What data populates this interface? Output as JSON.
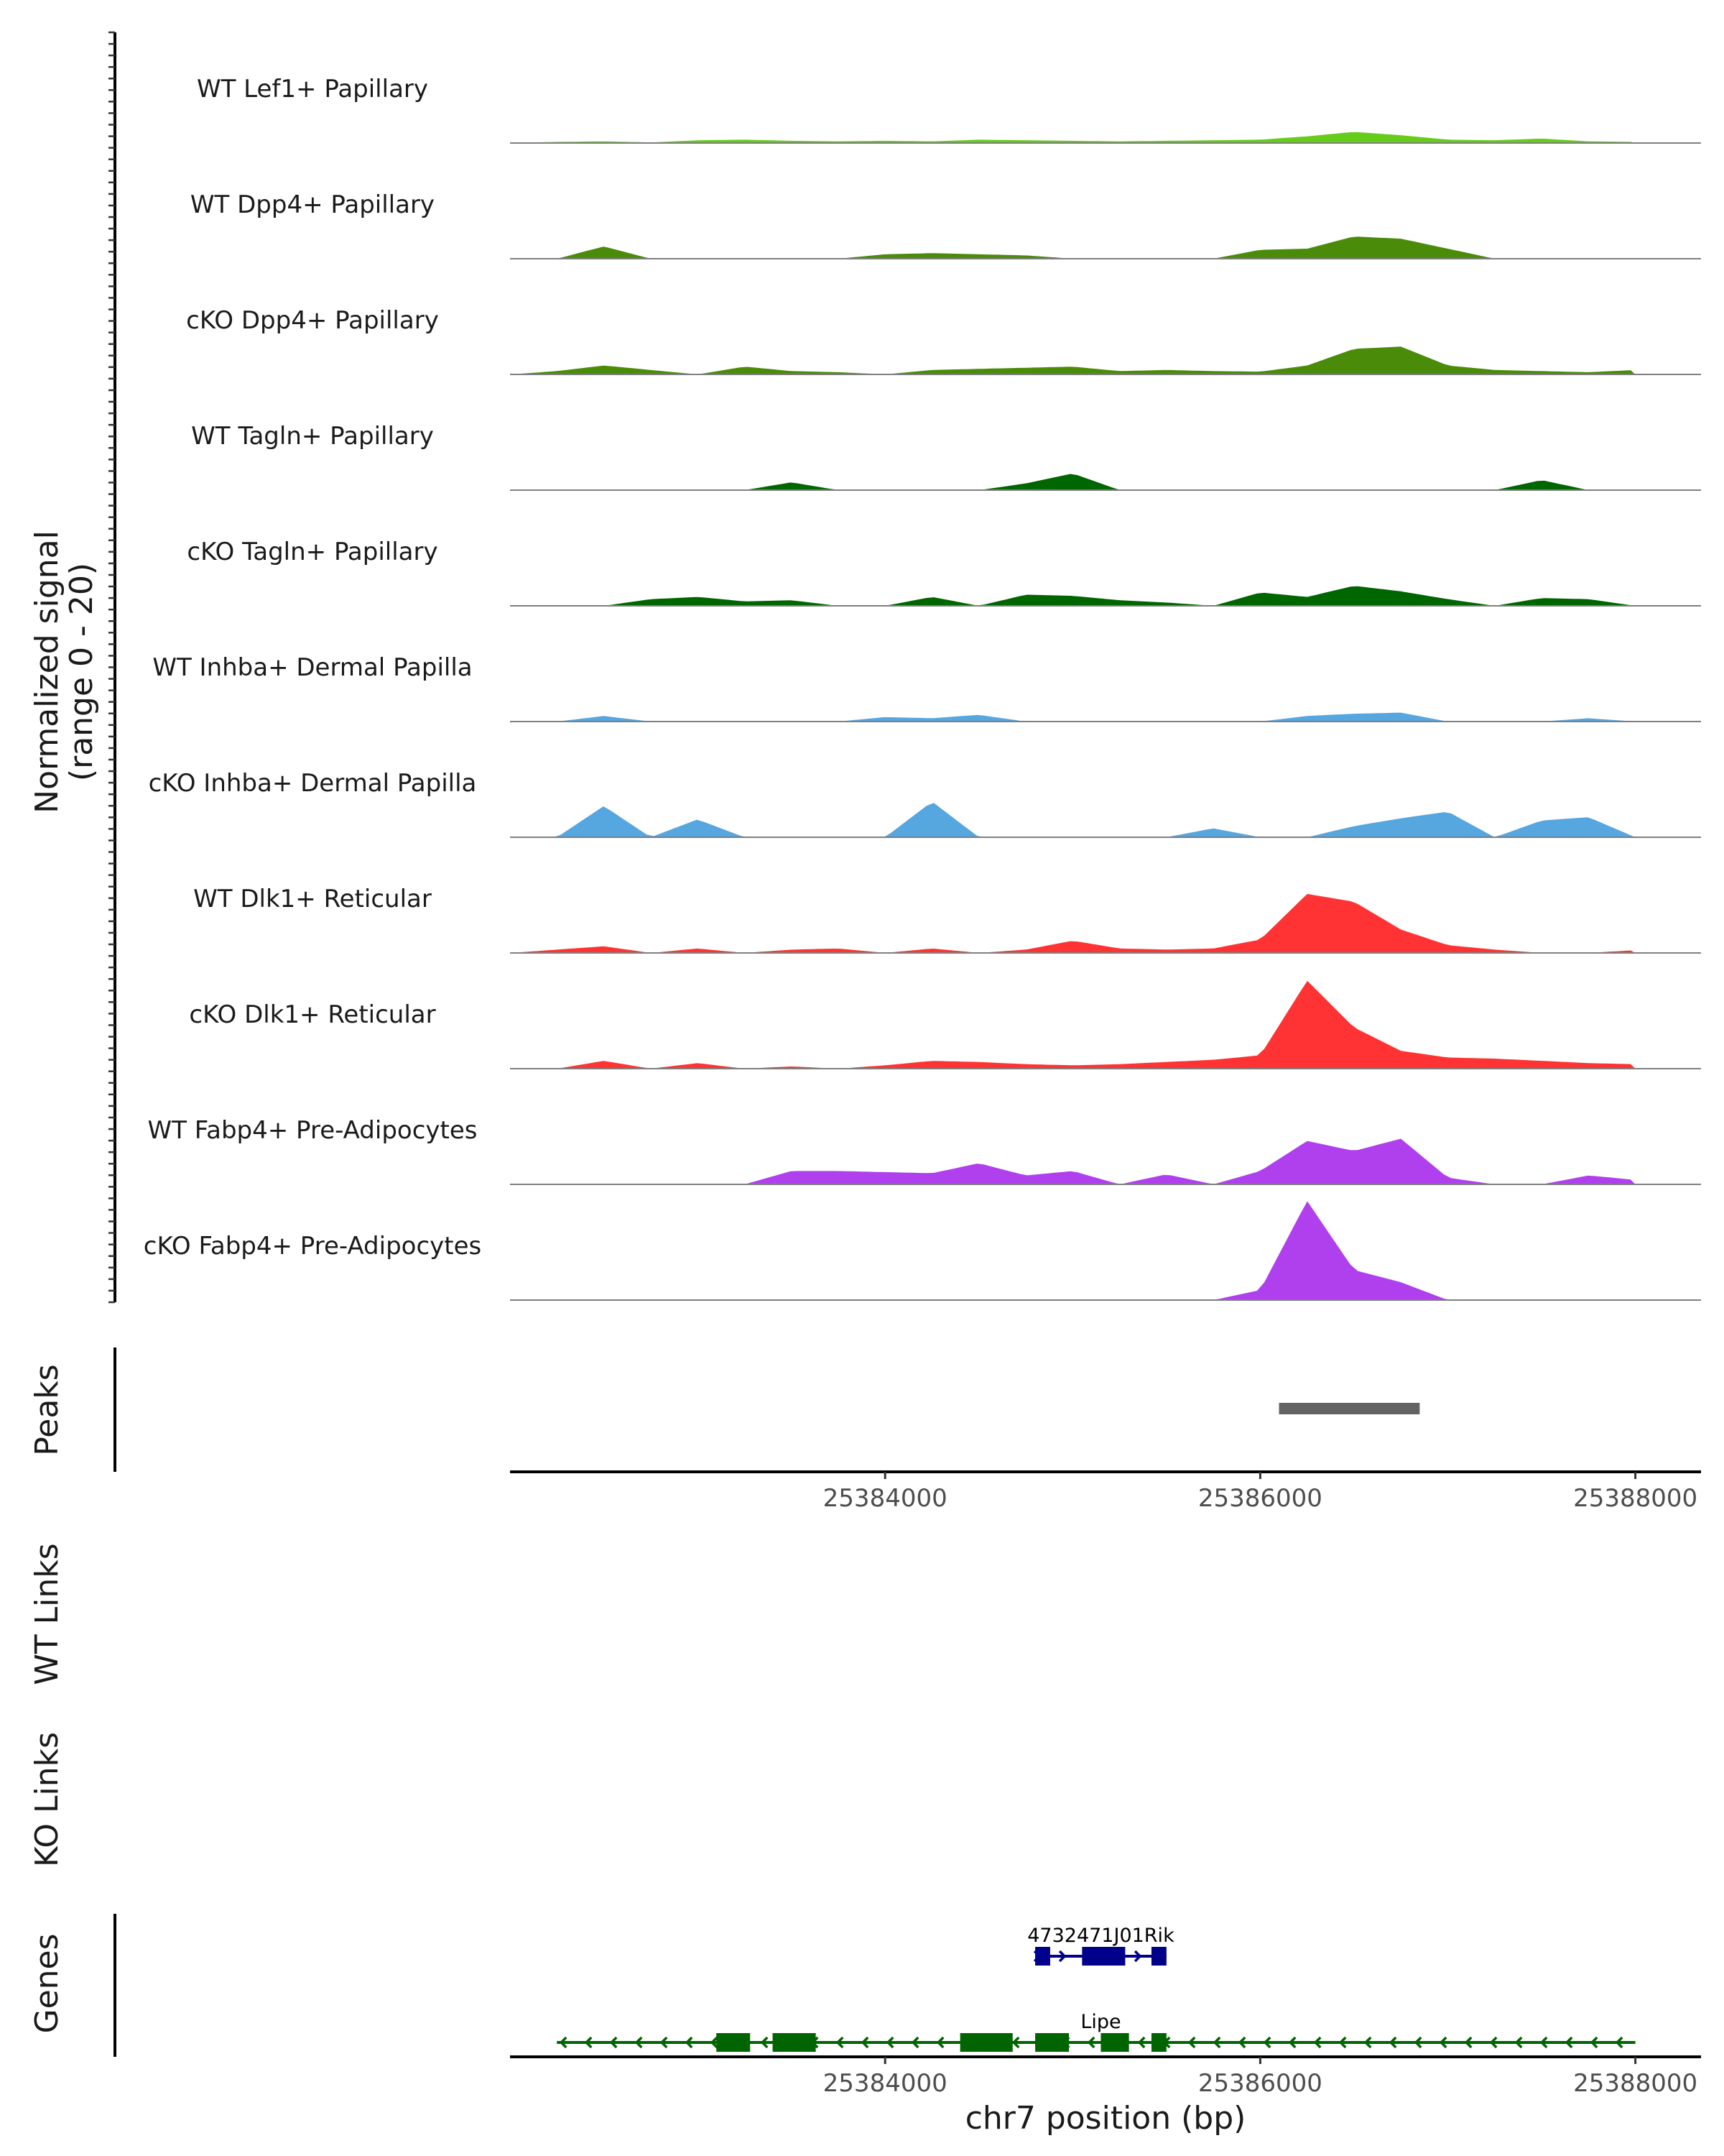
{
  "chart_data": {
    "type": "area",
    "title": "",
    "ylabel_line1": "Normalized signal",
    "ylabel_line2": "(range 0 - 20)",
    "xlabel": "chr7 position (bp)",
    "xlim": [
      25382000,
      25388350
    ],
    "ylim": [
      0,
      20
    ],
    "xticks": [
      25384000,
      25386000,
      25388000
    ],
    "xtick_labels": [
      "25384000",
      "25386000",
      "25388000"
    ],
    "x_positions": [
      25382000,
      25382250,
      25382500,
      25382750,
      25383000,
      25383250,
      25383500,
      25383750,
      25384000,
      25384250,
      25384500,
      25384750,
      25385000,
      25385250,
      25385500,
      25385750,
      25386000,
      25386250,
      25386500,
      25386750,
      25387000,
      25387250,
      25387500,
      25387750,
      25388000
    ],
    "series": [
      {
        "name": "WT Lef1+ Papillary",
        "color": "#66cc1a",
        "values": [
          0,
          0.2,
          0.3,
          0.1,
          0.5,
          0.6,
          0.4,
          0.3,
          0.4,
          0.3,
          0.6,
          0.5,
          0.4,
          0.3,
          0.4,
          0.5,
          0.6,
          1.2,
          2.0,
          1.4,
          0.6,
          0.5,
          0.8,
          0.3,
          0.2
        ]
      },
      {
        "name": "WT Dpp4+ Papillary",
        "color": "#4a8c0a",
        "values": [
          0,
          0,
          2.2,
          0,
          0,
          0,
          0,
          0,
          0.8,
          1.0,
          0.8,
          0.6,
          0,
          0,
          0,
          0,
          1.6,
          1.8,
          4.0,
          3.6,
          1.8,
          0,
          0,
          0,
          0
        ]
      },
      {
        "name": "cKO Dpp4+ Papillary",
        "color": "#4a8c0a",
        "values": [
          0,
          0.6,
          1.6,
          0.8,
          0,
          1.4,
          0.6,
          0.4,
          0,
          0.8,
          1.0,
          1.2,
          1.4,
          0.6,
          0.8,
          0.6,
          0.5,
          1.6,
          4.6,
          5.0,
          1.6,
          0.8,
          0.6,
          0.4,
          0.8
        ]
      },
      {
        "name": "WT Tagln+ Papillary",
        "color": "#006600",
        "values": [
          0,
          0,
          0,
          0,
          0,
          0,
          1.4,
          0,
          0,
          0,
          0,
          1.2,
          3.0,
          0,
          0,
          0,
          0,
          0,
          0,
          0,
          0,
          0,
          1.8,
          0,
          0
        ]
      },
      {
        "name": "cKO Tagln+ Papillary",
        "color": "#006600",
        "values": [
          0,
          0,
          0,
          1.2,
          1.6,
          0.8,
          1.0,
          0,
          0,
          1.6,
          0,
          2.0,
          1.8,
          1.0,
          0.6,
          0,
          2.4,
          1.6,
          3.6,
          2.6,
          1.2,
          0,
          1.4,
          1.2,
          0
        ]
      },
      {
        "name": "WT Inhba+ Dermal Papilla",
        "color": "#56a6e0",
        "values": [
          0,
          0,
          1.0,
          0,
          0,
          0,
          0,
          0,
          0.8,
          0.6,
          1.2,
          0,
          0,
          0,
          0,
          0,
          0,
          1.0,
          1.4,
          1.6,
          0,
          0,
          0,
          0.6,
          0
        ]
      },
      {
        "name": "cKO Inhba+ Dermal Papilla",
        "color": "#56a6e0",
        "values": [
          0,
          0,
          5.6,
          0,
          3.2,
          0,
          0,
          0,
          0,
          6.4,
          0,
          0,
          0,
          0,
          0,
          1.6,
          0,
          0,
          2.0,
          3.4,
          4.6,
          0,
          3.0,
          3.6,
          0
        ]
      },
      {
        "name": "WT Dlk1+ Reticular",
        "color": "#ff3333",
        "values": [
          0,
          0.6,
          1.2,
          0,
          0.8,
          0,
          0.6,
          0.8,
          0,
          0.8,
          0,
          0.6,
          2.2,
          0.8,
          0.6,
          0.8,
          2.4,
          10.6,
          9.2,
          4.2,
          1.4,
          0.6,
          0,
          0,
          0.5
        ]
      },
      {
        "name": "cKO Dlk1+ Reticular",
        "color": "#ff3333",
        "values": [
          0,
          0,
          1.4,
          0,
          1.0,
          0,
          0.4,
          0,
          0.6,
          1.4,
          1.2,
          0.8,
          0.6,
          0.8,
          1.2,
          1.6,
          2.4,
          15.8,
          7.4,
          3.2,
          2.0,
          1.8,
          1.4,
          1.0,
          0.8
        ]
      },
      {
        "name": "WT Fabp4+ Pre-Adipocytes",
        "color": "#b040ee",
        "values": [
          0,
          0,
          0,
          0,
          0,
          0,
          2.4,
          2.4,
          2.2,
          2.0,
          3.8,
          1.6,
          2.4,
          0,
          1.8,
          0,
          2.4,
          7.8,
          6.0,
          8.2,
          1.2,
          0,
          0,
          1.6,
          0.8
        ]
      },
      {
        "name": "cKO Fabp4+ Pre-Adipocytes",
        "color": "#b040ee",
        "values": [
          0,
          0,
          0,
          0,
          0,
          0,
          0,
          0,
          0,
          0,
          0,
          0,
          0,
          0,
          0,
          0,
          1.8,
          17.8,
          5.4,
          3.2,
          0,
          0,
          0,
          0,
          0
        ]
      }
    ],
    "peaks": {
      "label": "Peaks",
      "regions": [
        [
          25386100,
          25386850
        ]
      ]
    },
    "links": [
      {
        "label": "WT Links"
      },
      {
        "label": "KO Links"
      }
    ],
    "genes": {
      "label": "Genes",
      "transcripts": [
        {
          "name": "4732471J01Rik",
          "color": "#00008b",
          "strand": "+",
          "start": 25384800,
          "end": 25385500,
          "exons": [
            [
              25384800,
              25384880
            ],
            [
              25385050,
              25385280
            ],
            [
              25385420,
              25385500
            ]
          ]
        },
        {
          "name": "Lipe",
          "color": "#006400",
          "strand": "-",
          "start": 25382250,
          "end": 25388000,
          "exons": [
            [
              25383100,
              25383280
            ],
            [
              25383400,
              25383630
            ],
            [
              25384400,
              25384680
            ],
            [
              25384800,
              25384980
            ],
            [
              25385150,
              25385300
            ],
            [
              25385420,
              25385500
            ]
          ]
        }
      ]
    }
  }
}
